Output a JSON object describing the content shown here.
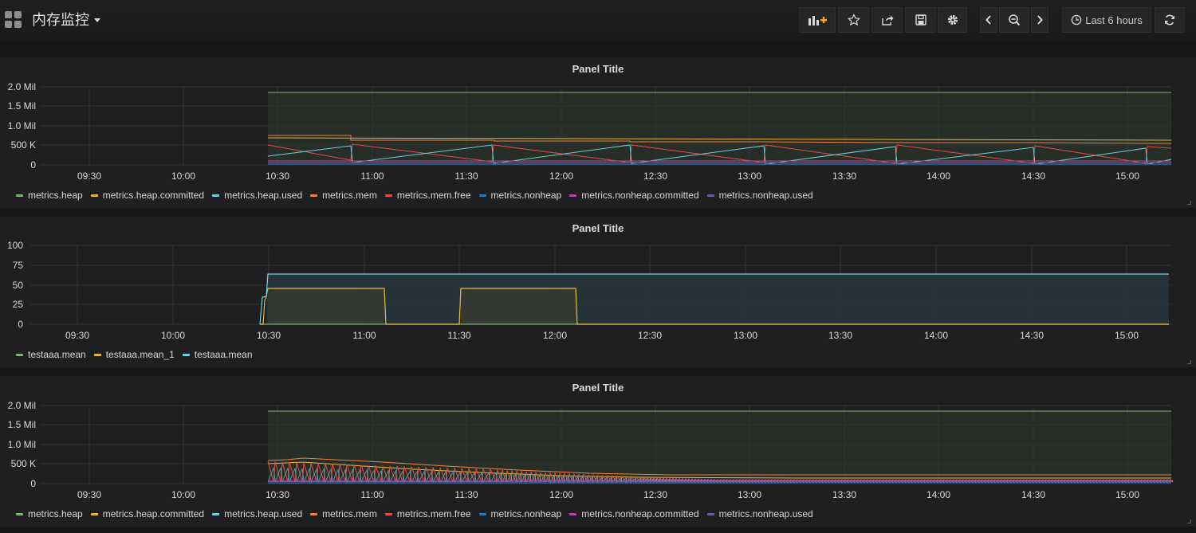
{
  "dashboard": {
    "title": "内存监控",
    "time_range_label": "Last 6 hours"
  },
  "toolbar": {
    "icons": [
      "add-panel-icon",
      "star-icon",
      "share-icon",
      "save-icon",
      "gear-icon",
      "chevron-left-icon",
      "zoom-out-icon",
      "chevron-right-icon",
      "clock-icon",
      "refresh-icon"
    ],
    "accent": "#f9a825"
  },
  "x_ticks": [
    "09:30",
    "10:00",
    "10:30",
    "11:00",
    "11:30",
    "12:00",
    "12:30",
    "13:00",
    "13:30",
    "14:00",
    "14:30",
    "15:00"
  ],
  "panels": [
    {
      "title": "Panel Title",
      "y_ticks": [
        "2.0 Mil",
        "1.5 Mil",
        "1.0 Mil",
        "500 K",
        "0"
      ],
      "legend": [
        {
          "label": "metrics.heap",
          "color": "#7eb26d"
        },
        {
          "label": "metrics.heap.committed",
          "color": "#eab839"
        },
        {
          "label": "metrics.heap.used",
          "color": "#6ed0e0"
        },
        {
          "label": "metrics.mem",
          "color": "#ef843c"
        },
        {
          "label": "metrics.mem.free",
          "color": "#e24d42"
        },
        {
          "label": "metrics.nonheap",
          "color": "#1f78c1"
        },
        {
          "label": "metrics.nonheap.committed",
          "color": "#ba43a9"
        },
        {
          "label": "metrics.nonheap.used",
          "color": "#705da0"
        }
      ]
    },
    {
      "title": "Panel Title",
      "y_ticks": [
        "100",
        "75",
        "50",
        "25",
        "0"
      ],
      "legend": [
        {
          "label": "testaaa.mean",
          "color": "#7eb26d"
        },
        {
          "label": "testaaa.mean_1",
          "color": "#eab839"
        },
        {
          "label": "testaaa.mean",
          "color": "#6ed0e0"
        }
      ]
    },
    {
      "title": "Panel Title",
      "y_ticks": [
        "2.0 Mil",
        "1.5 Mil",
        "1.0 Mil",
        "500 K",
        "0"
      ],
      "legend": [
        {
          "label": "metrics.heap",
          "color": "#7eb26d"
        },
        {
          "label": "metrics.heap.committed",
          "color": "#eab839"
        },
        {
          "label": "metrics.heap.used",
          "color": "#6ed0e0"
        },
        {
          "label": "metrics.mem",
          "color": "#ef843c"
        },
        {
          "label": "metrics.mem.free",
          "color": "#e24d42"
        },
        {
          "label": "metrics.nonheap",
          "color": "#1f78c1"
        },
        {
          "label": "metrics.nonheap.committed",
          "color": "#ba43a9"
        },
        {
          "label": "metrics.nonheap.used",
          "color": "#705da0"
        }
      ]
    }
  ]
}
